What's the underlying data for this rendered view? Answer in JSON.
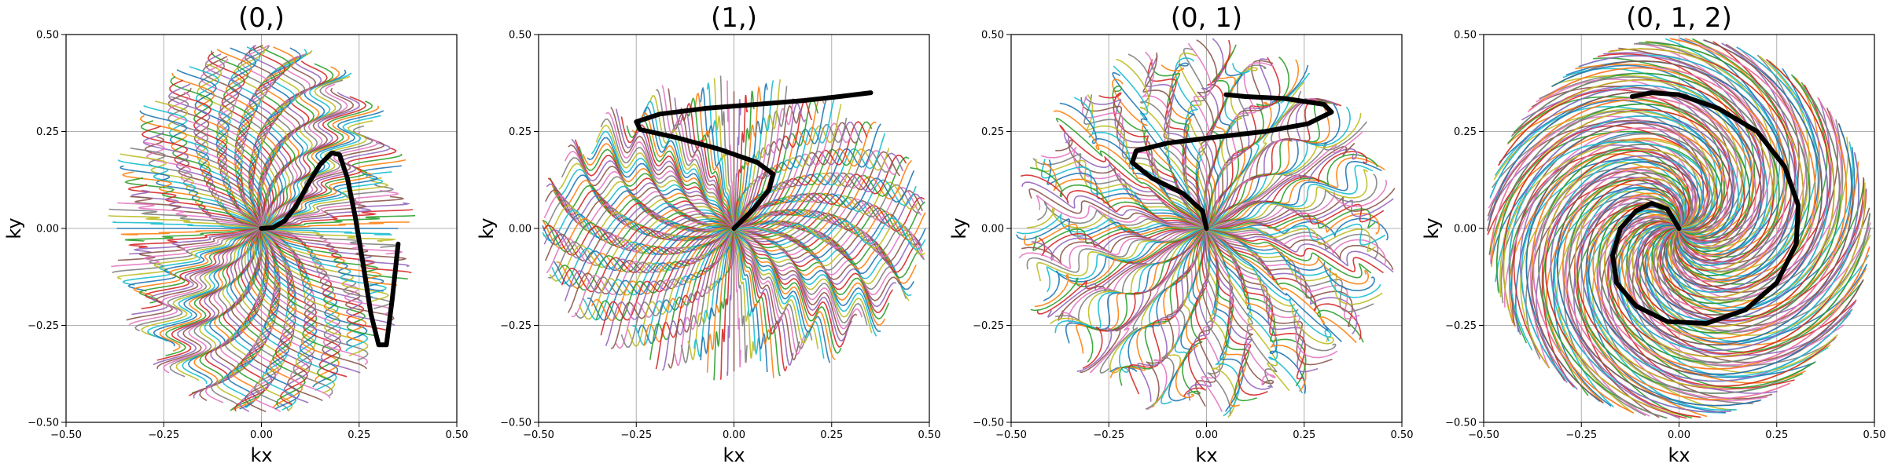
{
  "chart_data": [
    {
      "type": "line",
      "title": "(0,)",
      "xlabel": "kx",
      "ylabel": "ky",
      "xlim": [
        -0.5,
        0.5
      ],
      "ylim": [
        -0.5,
        0.5
      ],
      "xticks": [
        "−0.50",
        "−0.25",
        "0.00",
        "0.25",
        "0.50"
      ],
      "yticks": [
        "−0.50",
        "−0.25",
        "0.00",
        "0.25",
        "0.50"
      ],
      "grid": true,
      "pattern": "vertical-waves",
      "highlight_color": "#000000",
      "highlight": {
        "x": [
          0.0,
          0.03,
          0.06,
          0.09,
          0.12,
          0.15,
          0.18,
          0.2,
          0.22,
          0.24,
          0.26,
          0.28,
          0.3,
          0.32,
          0.335,
          0.35
        ],
        "y": [
          0.0,
          0.002,
          0.02,
          0.06,
          0.115,
          0.165,
          0.195,
          0.19,
          0.13,
          0.03,
          -0.09,
          -0.22,
          -0.3,
          -0.3,
          -0.18,
          -0.04
        ]
      }
    },
    {
      "type": "line",
      "title": "(1,)",
      "xlabel": "kx",
      "ylabel": "ky",
      "xlim": [
        -0.5,
        0.5
      ],
      "ylim": [
        -0.5,
        0.5
      ],
      "xticks": [
        "−0.50",
        "−0.25",
        "0.00",
        "0.25",
        "0.50"
      ],
      "yticks": [
        "−0.50",
        "−0.25",
        "0.00",
        "0.25",
        "0.50"
      ],
      "grid": true,
      "pattern": "horizontal-waves",
      "highlight_color": "#000000",
      "highlight": {
        "x": [
          0.0,
          0.05,
          0.09,
          0.1,
          0.06,
          -0.04,
          -0.15,
          -0.24,
          -0.25,
          -0.19,
          -0.07,
          0.06,
          0.18,
          0.27,
          0.35
        ],
        "y": [
          0.0,
          0.05,
          0.1,
          0.14,
          0.17,
          0.205,
          0.235,
          0.255,
          0.275,
          0.295,
          0.31,
          0.32,
          0.33,
          0.34,
          0.35
        ]
      }
    },
    {
      "type": "line",
      "title": "(0, 1)",
      "xlabel": "kx",
      "ylabel": "ky",
      "xlim": [
        -0.5,
        0.5
      ],
      "ylim": [
        -0.5,
        0.5
      ],
      "xticks": [
        "−0.50",
        "−0.25",
        "0.00",
        "0.25",
        "0.50"
      ],
      "yticks": [
        "−0.50",
        "−0.25",
        "0.00",
        "0.25",
        "0.50"
      ],
      "grid": true,
      "pattern": "disk-waves",
      "highlight_color": "#000000",
      "highlight": {
        "x": [
          0.0,
          -0.01,
          -0.06,
          -0.14,
          -0.19,
          -0.18,
          -0.1,
          0.02,
          0.15,
          0.26,
          0.32,
          0.3,
          0.2,
          0.1,
          0.05
        ],
        "y": [
          0.0,
          0.045,
          0.09,
          0.13,
          0.17,
          0.2,
          0.22,
          0.235,
          0.25,
          0.27,
          0.3,
          0.32,
          0.335,
          0.34,
          0.345
        ]
      }
    },
    {
      "type": "line",
      "title": "(0, 1, 2)",
      "xlabel": "kx",
      "ylabel": "ky",
      "xlim": [
        -0.5,
        0.5
      ],
      "ylim": [
        -0.5,
        0.5
      ],
      "xticks": [
        "−0.50",
        "−0.25",
        "0.00",
        "0.25",
        "0.50"
      ],
      "yticks": [
        "−0.50",
        "−0.25",
        "0.00",
        "0.25",
        "0.50"
      ],
      "grid": true,
      "pattern": "spirals",
      "highlight_color": "#000000",
      "highlight": {
        "x": [
          0.0,
          -0.03,
          -0.07,
          -0.11,
          -0.15,
          -0.17,
          -0.16,
          -0.11,
          -0.03,
          0.07,
          0.17,
          0.25,
          0.3,
          0.305,
          0.27,
          0.2,
          0.1,
          0.0,
          -0.07,
          -0.12
        ],
        "y": [
          0.0,
          0.05,
          0.065,
          0.045,
          0.0,
          -0.07,
          -0.14,
          -0.2,
          -0.24,
          -0.245,
          -0.21,
          -0.14,
          -0.04,
          0.06,
          0.16,
          0.25,
          0.31,
          0.345,
          0.35,
          0.34
        ]
      }
    }
  ]
}
